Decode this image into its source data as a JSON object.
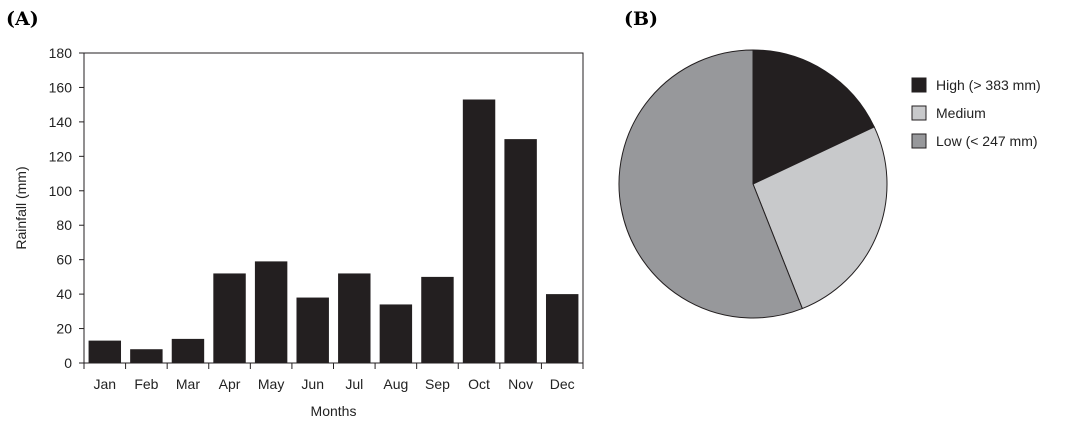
{
  "chart_data": [
    {
      "type": "bar",
      "panel_label": "(A)",
      "categories": [
        "Jan",
        "Feb",
        "Mar",
        "Apr",
        "May",
        "Jun",
        "Jul",
        "Aug",
        "Sep",
        "Oct",
        "Nov",
        "Dec"
      ],
      "values": [
        13,
        8,
        14,
        52,
        59,
        38,
        52,
        34,
        50,
        153,
        130,
        40
      ],
      "xlabel": "Months",
      "ylabel": "Rainfall (mm)",
      "ylim": [
        0,
        180
      ],
      "yticks": [
        0,
        20,
        40,
        60,
        80,
        100,
        120,
        140,
        160,
        180
      ],
      "grid": false,
      "bar_color": "#231f20"
    },
    {
      "type": "pie",
      "panel_label": "(B)",
      "slices": [
        {
          "label": "High (> 383 mm)",
          "value": 18,
          "color": "#231f20"
        },
        {
          "label": "Medium",
          "value": 26,
          "color": "#c8c9cb"
        },
        {
          "label": "Low (< 247 mm)",
          "value": 56,
          "color": "#97989b"
        }
      ],
      "legend_position": "right"
    }
  ]
}
